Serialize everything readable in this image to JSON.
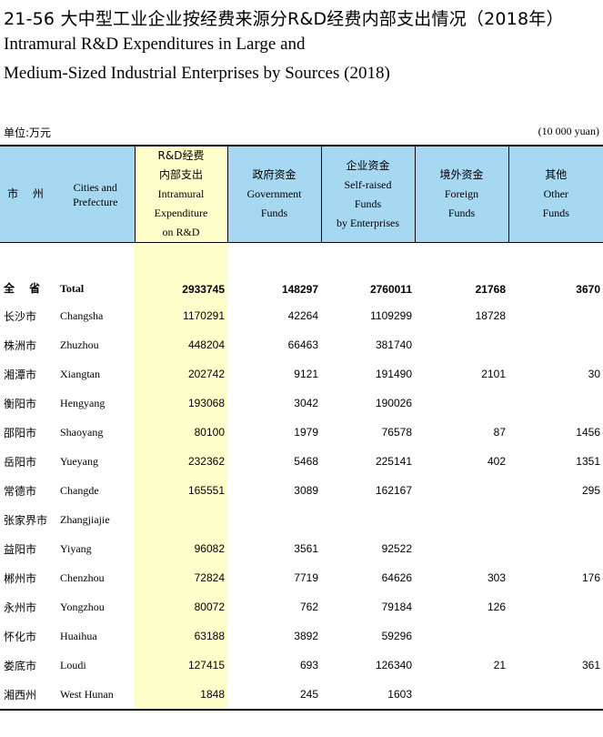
{
  "title": {
    "cn": "21-56   大中型工业企业按经费来源分R&D经费内部支出情况（2018年）",
    "en_line1": "Intramural R&D Expenditures in Large and",
    "en_line2": "Medium-Sized Industrial Enterprises by Sources (2018)"
  },
  "unit": {
    "cn": "单位:万元",
    "en": "(10 000 yuan)"
  },
  "headers": {
    "city_cn": "市 州",
    "city_en_1": "Cities and",
    "city_en_2": "Prefecture",
    "rd": [
      "R&D经费",
      "内部支出",
      "Intramural",
      "Expenditure",
      "on R&D"
    ],
    "gov": [
      "政府资金",
      "Government",
      "Funds"
    ],
    "self": [
      "企业资金",
      "Self-raised",
      "Funds",
      "by Enterprises"
    ],
    "foreign": [
      "境外资金",
      "Foreign",
      "Funds"
    ],
    "other": [
      "其他",
      "Other",
      "Funds"
    ]
  },
  "rows": [
    {
      "cn": "全 省",
      "en": "Total",
      "rd": "2933745",
      "gov": "148297",
      "self": "2760011",
      "foreign": "21768",
      "other": "3670"
    },
    {
      "cn": "长沙市",
      "en": "Changsha",
      "rd": "1170291",
      "gov": "42264",
      "self": "1109299",
      "foreign": "18728",
      "other": ""
    },
    {
      "cn": "株洲市",
      "en": "Zhuzhou",
      "rd": "448204",
      "gov": "66463",
      "self": "381740",
      "foreign": "",
      "other": ""
    },
    {
      "cn": "湘潭市",
      "en": "Xiangtan",
      "rd": "202742",
      "gov": "9121",
      "self": "191490",
      "foreign": "2101",
      "other": "30"
    },
    {
      "cn": "衡阳市",
      "en": "Hengyang",
      "rd": "193068",
      "gov": "3042",
      "self": "190026",
      "foreign": "",
      "other": ""
    },
    {
      "cn": "邵阳市",
      "en": "Shaoyang",
      "rd": "80100",
      "gov": "1979",
      "self": "76578",
      "foreign": "87",
      "other": "1456"
    },
    {
      "cn": "岳阳市",
      "en": "Yueyang",
      "rd": "232362",
      "gov": "5468",
      "self": "225141",
      "foreign": "402",
      "other": "1351"
    },
    {
      "cn": "常德市",
      "en": "Changde",
      "rd": "165551",
      "gov": "3089",
      "self": "162167",
      "foreign": "",
      "other": "295"
    },
    {
      "cn": "张家界市",
      "en": "Zhangjiajie",
      "rd": "",
      "gov": "",
      "self": "",
      "foreign": "",
      "other": ""
    },
    {
      "cn": "益阳市",
      "en": "Yiyang",
      "rd": "96082",
      "gov": "3561",
      "self": "92522",
      "foreign": "",
      "other": ""
    },
    {
      "cn": "郴州市",
      "en": "Chenzhou",
      "rd": "72824",
      "gov": "7719",
      "self": "64626",
      "foreign": "303",
      "other": "176"
    },
    {
      "cn": "永州市",
      "en": "Yongzhou",
      "rd": "80072",
      "gov": "762",
      "self": "79184",
      "foreign": "126",
      "other": ""
    },
    {
      "cn": "怀化市",
      "en": "Huaihua",
      "rd": "63188",
      "gov": "3892",
      "self": "59296",
      "foreign": "",
      "other": ""
    },
    {
      "cn": "娄底市",
      "en": "Loudi",
      "rd": "127415",
      "gov": "693",
      "self": "126340",
      "foreign": "21",
      "other": "361"
    },
    {
      "cn": "湘西州",
      "en": "West Hunan",
      "rd": "1848",
      "gov": "245",
      "self": "1603",
      "foreign": "",
      "other": ""
    }
  ]
}
